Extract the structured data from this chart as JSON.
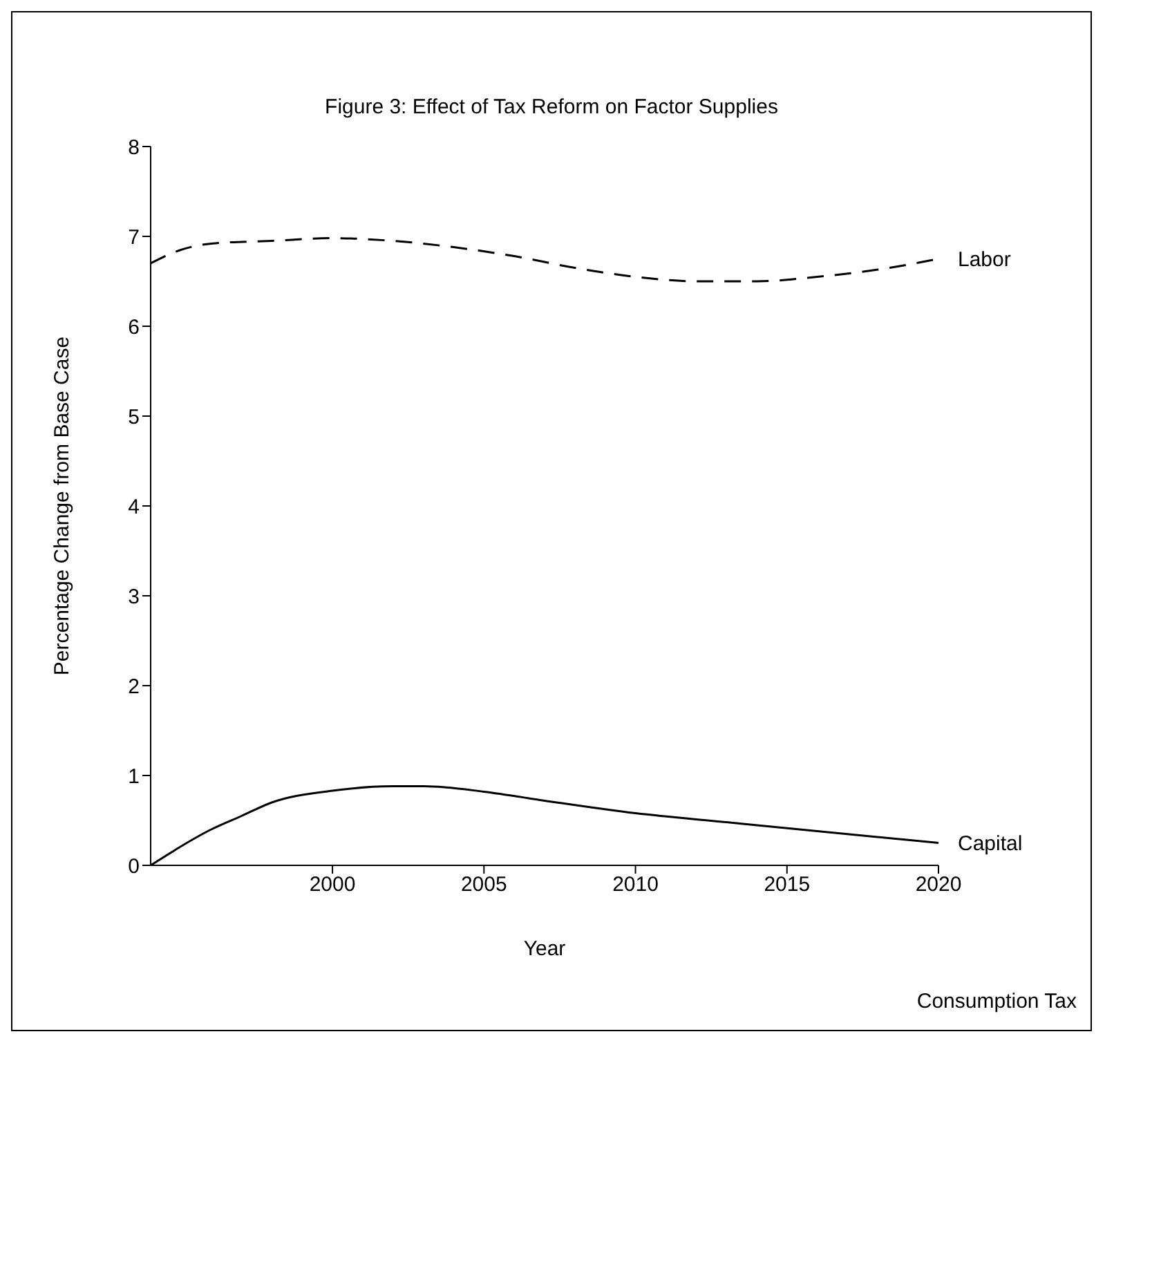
{
  "chart_data": {
    "type": "line",
    "title": "Figure 3: Effect of Tax Reform on Factor Supplies",
    "xlabel": "Year",
    "ylabel": "Percentage Change from Base Case",
    "annotations": [
      "Consumption Tax"
    ],
    "xlim": [
      1994,
      2020
    ],
    "xticks": [
      2000,
      2005,
      2010,
      2015,
      2020
    ],
    "ylim": [
      0,
      8
    ],
    "yticks": [
      0,
      1,
      2,
      3,
      4,
      5,
      6,
      7,
      8
    ],
    "grid": false,
    "legend": false,
    "marker": "none",
    "series": [
      {
        "name": "Labor",
        "color": "#000000",
        "line_style": "dashed",
        "x": [
          1994,
          1995,
          1996,
          1998,
          2000,
          2002,
          2004,
          2006,
          2008,
          2010,
          2012,
          2014,
          2016,
          2018,
          2020
        ],
        "values": [
          6.7,
          6.85,
          6.92,
          6.95,
          6.98,
          6.95,
          6.88,
          6.78,
          6.65,
          6.55,
          6.5,
          6.5,
          6.55,
          6.63,
          6.75
        ]
      },
      {
        "name": "Capital",
        "color": "#000000",
        "line_style": "solid",
        "x": [
          1994,
          1996,
          1997,
          1998,
          2000,
          2002,
          2003,
          2005,
          2007,
          2010,
          2013,
          2016,
          2020
        ],
        "values": [
          0,
          0.4,
          0.55,
          0.7,
          0.83,
          0.88,
          0.88,
          0.82,
          0.72,
          0.58,
          0.48,
          0.38,
          0.25
        ]
      }
    ]
  }
}
